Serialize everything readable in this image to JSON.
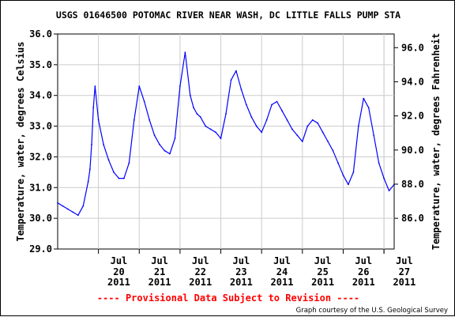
{
  "chart_data": {
    "type": "line",
    "title": "USGS 01646500 POTOMAC RIVER NEAR WASH, DC LITTLE FALLS PUMP STA",
    "ylabel_left": "Temperature, water, degrees Celsius",
    "ylabel_right": "Temperature, water, degrees Fahrenheit",
    "ylim": [
      29.0,
      36.0
    ],
    "y_ticks": [
      "29.0",
      "30.0",
      "31.0",
      "32.0",
      "33.0",
      "34.0",
      "35.0",
      "36.0"
    ],
    "y_right_ticks": [
      "86.0",
      "88.0",
      "90.0",
      "92.0",
      "94.0",
      "96.0"
    ],
    "x_ticks": [
      {
        "month": "Jul",
        "day": "20",
        "year": "2011"
      },
      {
        "month": "Jul",
        "day": "21",
        "year": "2011"
      },
      {
        "month": "Jul",
        "day": "22",
        "year": "2011"
      },
      {
        "month": "Jul",
        "day": "23",
        "year": "2011"
      },
      {
        "month": "Jul",
        "day": "24",
        "year": "2011"
      },
      {
        "month": "Jul",
        "day": "25",
        "year": "2011"
      },
      {
        "month": "Jul",
        "day": "26",
        "year": "2011"
      },
      {
        "month": "Jul",
        "day": "27",
        "year": "2011"
      }
    ],
    "x_range": [
      "2011-07-19 00:00",
      "2011-07-27 06:00"
    ],
    "grid": true,
    "line_color": "#0000ff",
    "series": [
      {
        "x": [
          "2011-07-19 00:00",
          "2011-07-19 03:00",
          "2011-07-19 06:00",
          "2011-07-19 09:00",
          "2011-07-19 12:00",
          "2011-07-19 15:00",
          "2011-07-19 18:00",
          "2011-07-19 19:00",
          "2011-07-19 20:00",
          "2011-07-19 21:00",
          "2011-07-19 22:00",
          "2011-07-20 00:00",
          "2011-07-20 03:00",
          "2011-07-20 06:00",
          "2011-07-20 09:00",
          "2011-07-20 12:00",
          "2011-07-20 15:00",
          "2011-07-20 18:00",
          "2011-07-20 21:00",
          "2011-07-21 00:00",
          "2011-07-21 03:00",
          "2011-07-21 06:00",
          "2011-07-21 09:00",
          "2011-07-21 12:00",
          "2011-07-21 15:00",
          "2011-07-21 18:00",
          "2011-07-21 21:00",
          "2011-07-22 00:00",
          "2011-07-22 03:00",
          "2011-07-22 06:00",
          "2011-07-22 08:00",
          "2011-07-22 10:00",
          "2011-07-22 12:00",
          "2011-07-22 15:00",
          "2011-07-22 18:00",
          "2011-07-22 21:00",
          "2011-07-23 00:00",
          "2011-07-23 03:00",
          "2011-07-23 06:00",
          "2011-07-23 09:00",
          "2011-07-23 12:00",
          "2011-07-23 15:00",
          "2011-07-23 18:00",
          "2011-07-23 21:00",
          "2011-07-24 00:00",
          "2011-07-24 03:00",
          "2011-07-24 06:00",
          "2011-07-24 09:00",
          "2011-07-24 12:00",
          "2011-07-24 15:00",
          "2011-07-24 18:00",
          "2011-07-24 21:00",
          "2011-07-25 00:00",
          "2011-07-25 03:00",
          "2011-07-25 06:00",
          "2011-07-25 09:00",
          "2011-07-25 12:00",
          "2011-07-25 15:00",
          "2011-07-25 18:00",
          "2011-07-25 21:00",
          "2011-07-26 00:00",
          "2011-07-26 03:00",
          "2011-07-26 06:00",
          "2011-07-26 09:00",
          "2011-07-26 12:00",
          "2011-07-26 15:00",
          "2011-07-26 18:00",
          "2011-07-26 21:00",
          "2011-07-27 00:00",
          "2011-07-27 03:00",
          "2011-07-27 06:00"
        ],
        "y": [
          30.5,
          30.4,
          30.3,
          30.2,
          30.1,
          30.4,
          31.2,
          31.6,
          32.4,
          33.6,
          34.3,
          33.2,
          32.4,
          31.9,
          31.5,
          31.3,
          31.3,
          31.8,
          33.2,
          34.3,
          33.8,
          33.2,
          32.7,
          32.4,
          32.2,
          32.1,
          32.6,
          34.3,
          35.4,
          34.0,
          33.6,
          33.4,
          33.3,
          33.0,
          32.9,
          32.8,
          32.6,
          33.4,
          34.5,
          34.8,
          34.2,
          33.7,
          33.3,
          33.0,
          32.8,
          33.2,
          33.7,
          33.8,
          33.5,
          33.2,
          32.9,
          32.7,
          32.5,
          33.0,
          33.2,
          33.1,
          32.8,
          32.5,
          32.2,
          31.8,
          31.4,
          31.1,
          31.5,
          33.0,
          33.9,
          33.6,
          32.7,
          31.8,
          31.3,
          30.9,
          31.1
        ]
      }
    ]
  },
  "footer": {
    "provisional": "---- Provisional Data Subject to Revision ----",
    "credit": "Graph courtesy of the U.S. Geological Survey"
  }
}
